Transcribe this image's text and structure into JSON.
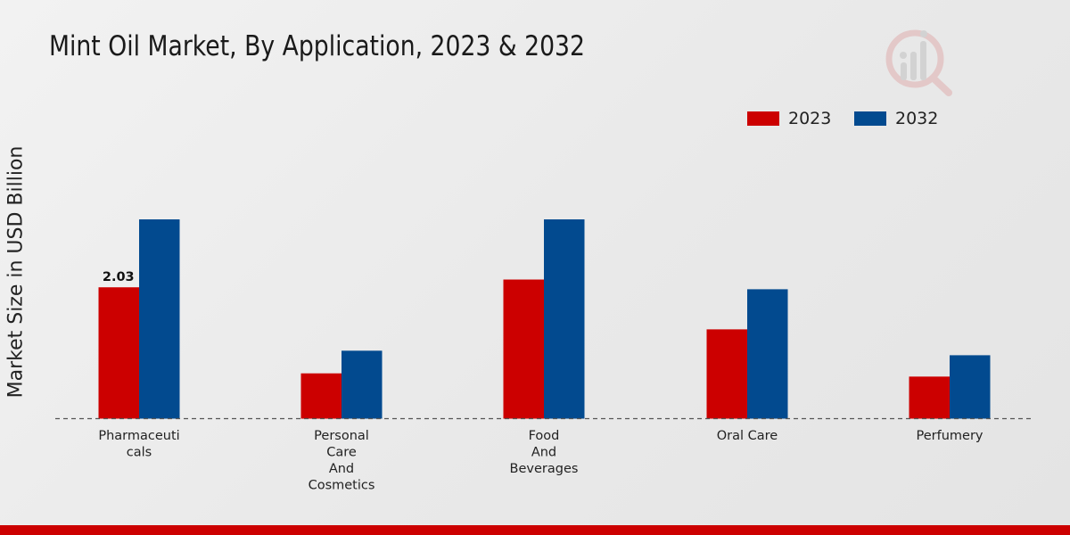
{
  "chart_data": {
    "type": "bar",
    "title": "Mint Oil Market, By Application, 2023 & 2032",
    "ylabel": "Market Size in USD Billion",
    "xlabel": "",
    "categories": [
      [
        "Pharmaceuti",
        "cals"
      ],
      [
        "Personal",
        "Care",
        "And",
        "Cosmetics"
      ],
      [
        "Food",
        "And",
        "Beverages"
      ],
      [
        "Oral Care"
      ],
      [
        "Perfumery"
      ]
    ],
    "series": [
      {
        "name": "2023",
        "color": "#cc0000",
        "values": [
          2.03,
          0.7,
          2.15,
          1.38,
          0.65
        ]
      },
      {
        "name": "2032",
        "color": "#024a8f",
        "values": [
          3.08,
          1.05,
          3.08,
          2.0,
          0.98
        ]
      }
    ],
    "ylim": [
      0,
      4.5
    ],
    "data_labels": [
      {
        "series": 0,
        "index": 0,
        "text": "2.03"
      }
    ],
    "legend_position": "top-right",
    "grid": false
  },
  "logo": {
    "icon": "bar-chart-logo-icon"
  }
}
